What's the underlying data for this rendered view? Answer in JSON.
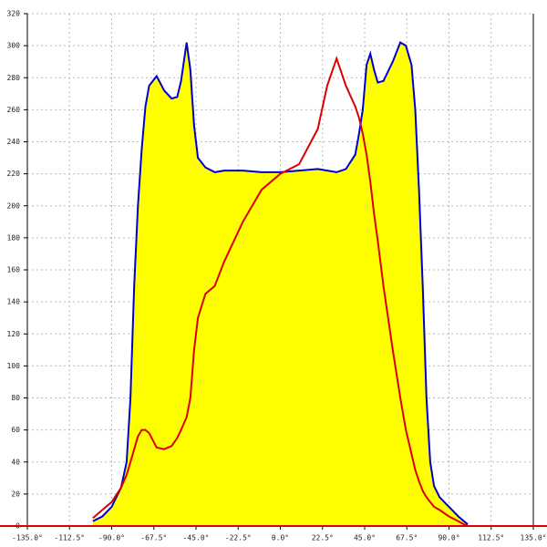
{
  "chart_data": {
    "type": "area-line",
    "x": [
      -100,
      -95,
      -90,
      -85,
      -82,
      -80,
      -78,
      -76,
      -74,
      -72,
      -70,
      -66,
      -62,
      -58,
      -55,
      -53,
      -50,
      -48,
      -46,
      -44,
      -40,
      -35,
      -30,
      -20,
      -10,
      0,
      10,
      20,
      25,
      30,
      35,
      40,
      42,
      44,
      46,
      48,
      50,
      52,
      55,
      60,
      64,
      67,
      70,
      72,
      74,
      76,
      78,
      80,
      82,
      85,
      90,
      95,
      98,
      100
    ],
    "series": [
      {
        "color": "#0000cc",
        "fill": "#ffff00",
        "values": [
          3,
          6,
          12,
          24,
          40,
          80,
          150,
          200,
          235,
          262,
          275,
          281,
          272,
          267,
          268,
          278,
          302,
          285,
          250,
          230,
          224,
          221,
          222,
          222,
          221,
          221,
          222,
          223,
          222,
          221,
          223,
          232,
          245,
          260,
          288,
          295,
          285,
          277,
          278,
          290,
          302,
          300,
          288,
          260,
          210,
          150,
          80,
          40,
          25,
          18,
          12,
          6,
          3,
          1
        ]
      },
      {
        "color": "#dd0000",
        "values": [
          5,
          10,
          15,
          24,
          32,
          40,
          48,
          56,
          60,
          60,
          58,
          49,
          48,
          50,
          55,
          60,
          68,
          80,
          110,
          130,
          145,
          150,
          165,
          190,
          210,
          220,
          226,
          248,
          275,
          292,
          275,
          262,
          255,
          245,
          232,
          215,
          195,
          178,
          150,
          110,
          80,
          60,
          45,
          35,
          28,
          22,
          18,
          15,
          12,
          10,
          6,
          3,
          1,
          0
        ]
      }
    ],
    "xlim": [
      -135,
      135
    ],
    "ylim": [
      0,
      320
    ],
    "xticks": [
      {
        "value": -135,
        "label": "-135.0°"
      },
      {
        "value": -112.5,
        "label": "-112.5°"
      },
      {
        "value": -90,
        "label": "-90.0°"
      },
      {
        "value": -67.5,
        "label": "-67.5°"
      },
      {
        "value": -45,
        "label": "-45.0°"
      },
      {
        "value": -22.5,
        "label": "-22.5°"
      },
      {
        "value": 0,
        "label": "0.0°"
      },
      {
        "value": 22.5,
        "label": "22.5°"
      },
      {
        "value": 45,
        "label": "45.0°"
      },
      {
        "value": 67.5,
        "label": "67.5°"
      },
      {
        "value": 90,
        "label": "90.0°"
      },
      {
        "value": 112.5,
        "label": "112.5°"
      },
      {
        "value": 135,
        "label": "135.0°"
      }
    ],
    "yticks": [
      0,
      20,
      40,
      60,
      80,
      100,
      120,
      140,
      160,
      180,
      200,
      220,
      240,
      260,
      280,
      300,
      320
    ],
    "grid": true
  }
}
